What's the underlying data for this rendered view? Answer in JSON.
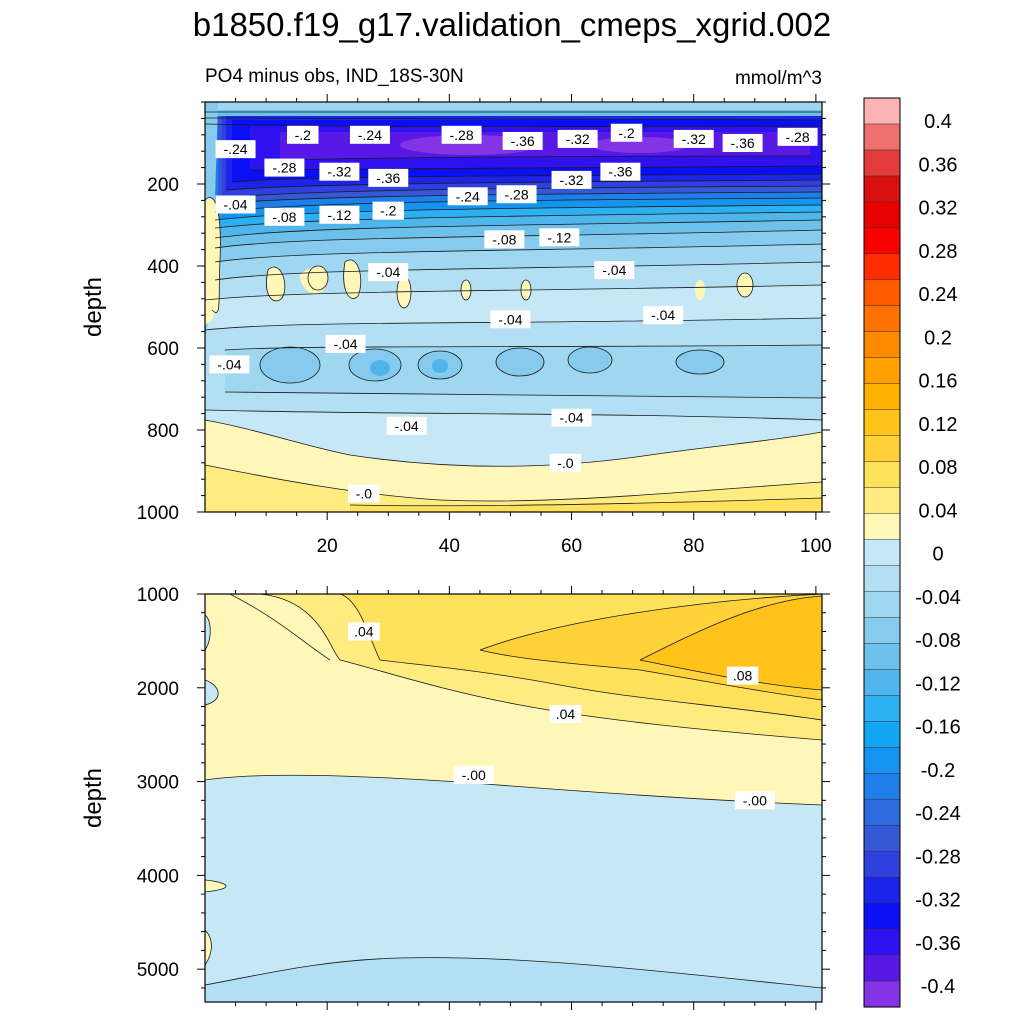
{
  "title": "b1850.f19_g17.validation_cmeps_xgrid.002",
  "subtitle_left": "PO4 minus obs, IND_18S-30N",
  "subtitle_right": "mmol/m^3",
  "chart_data": [
    {
      "type": "heatmap",
      "panel": "upper",
      "ylabel": "depth",
      "ylim": [
        0,
        1000
      ],
      "y_reversed": true,
      "xlim": [
        0,
        101
      ],
      "x_ticks": [
        20,
        40,
        60,
        80,
        100
      ],
      "y_ticks": [
        200,
        400,
        600,
        800,
        1000
      ],
      "contour_labels": [
        {
          "text": "-.2",
          "x": 16,
          "y": 80
        },
        {
          "text": "-.24",
          "x": 27,
          "y": 80
        },
        {
          "text": "-.28",
          "x": 42,
          "y": 80
        },
        {
          "text": "-.36",
          "x": 52,
          "y": 95
        },
        {
          "text": "-.32",
          "x": 61,
          "y": 90
        },
        {
          "text": "-.2",
          "x": 69,
          "y": 75
        },
        {
          "text": "-.32",
          "x": 80,
          "y": 90
        },
        {
          "text": "-.36",
          "x": 88,
          "y": 100
        },
        {
          "text": "-.28",
          "x": 97,
          "y": 85
        },
        {
          "text": "-.24",
          "x": 5,
          "y": 115
        },
        {
          "text": "-.28",
          "x": 13,
          "y": 160
        },
        {
          "text": "-.32",
          "x": 22,
          "y": 170
        },
        {
          "text": "-.36",
          "x": 30,
          "y": 185
        },
        {
          "text": "-.24",
          "x": 43,
          "y": 230
        },
        {
          "text": "-.28",
          "x": 51,
          "y": 225
        },
        {
          "text": "-.32",
          "x": 60,
          "y": 190
        },
        {
          "text": "-.36",
          "x": 68,
          "y": 170
        },
        {
          "text": "-.04",
          "x": 5,
          "y": 250
        },
        {
          "text": "-.08",
          "x": 13,
          "y": 280
        },
        {
          "text": "-.12",
          "x": 22,
          "y": 275
        },
        {
          "text": "-.2",
          "x": 30,
          "y": 265
        },
        {
          "text": "-.08",
          "x": 49,
          "y": 335
        },
        {
          "text": "-.12",
          "x": 58,
          "y": 330
        },
        {
          "text": "-.04",
          "x": 30,
          "y": 415
        },
        {
          "text": "-.04",
          "x": 67,
          "y": 410
        },
        {
          "text": "-.04",
          "x": 50,
          "y": 530
        },
        {
          "text": "-.04",
          "x": 75,
          "y": 520
        },
        {
          "text": "-.04",
          "x": 23,
          "y": 590
        },
        {
          "text": "-.04",
          "x": 4,
          "y": 640
        },
        {
          "text": "-.04",
          "x": 33,
          "y": 790
        },
        {
          "text": "-.04",
          "x": 60,
          "y": 770
        },
        {
          "text": "-.0",
          "x": 59,
          "y": 880
        },
        {
          "text": "-.0",
          "x": 26,
          "y": 955
        }
      ]
    },
    {
      "type": "heatmap",
      "panel": "lower",
      "ylabel": "depth",
      "ylim": [
        1000,
        5350
      ],
      "y_reversed": true,
      "xlim": [
        0,
        101
      ],
      "y_ticks": [
        1000,
        2000,
        3000,
        4000,
        5000
      ],
      "contour_labels": [
        {
          "text": ".04",
          "x": 26,
          "y": 1400
        },
        {
          "text": ".08",
          "x": 88,
          "y": 1870
        },
        {
          "text": ".04",
          "x": 59,
          "y": 2280
        },
        {
          "text": "-.00",
          "x": 44,
          "y": 2930
        },
        {
          "text": "-.00",
          "x": 90,
          "y": 3200
        }
      ]
    }
  ],
  "colorbar": {
    "labels": [
      "0.4",
      "0.36",
      "0.32",
      "0.28",
      "0.24",
      "0.2",
      "0.16",
      "0.12",
      "0.08",
      "0.04",
      "0",
      "-0.04",
      "-0.08",
      "-0.12",
      "-0.16",
      "-0.2",
      "-0.24",
      "-0.28",
      "-0.32",
      "-0.36",
      "-0.4"
    ],
    "colors": [
      "#fbb4b4",
      "#f07070",
      "#e43c3c",
      "#d91010",
      "#e80000",
      "#f80000",
      "#ff2d00",
      "#ff5a00",
      "#ff7100",
      "#ff8a00",
      "#ffa000",
      "#ffb100",
      "#ffc31a",
      "#ffd23a",
      "#ffe15b",
      "#ffec80",
      "#fff7b8",
      "#c6e7f6",
      "#b2dff3",
      "#9fd6f0",
      "#86cbed",
      "#6cc0ea",
      "#4fb6ec",
      "#2cb0f2",
      "#12a6f3",
      "#1493ef",
      "#1f7fea",
      "#2c6be0",
      "#3558d6",
      "#2f3fe0",
      "#1d24ea",
      "#0b0ff5",
      "#2f10ee",
      "#5818e6",
      "#8433e6"
    ]
  }
}
